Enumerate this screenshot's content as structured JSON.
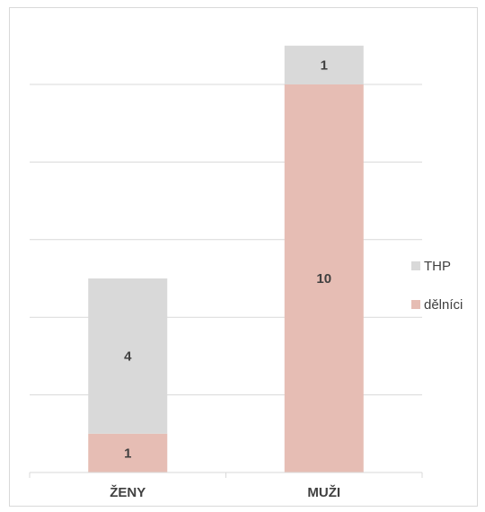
{
  "chart_data": {
    "type": "bar",
    "stacked": true,
    "categories": [
      "ŽENY",
      "MUŽI"
    ],
    "series": [
      {
        "name": "dělníci",
        "values": [
          1,
          10
        ],
        "color": "#e6bdb4"
      },
      {
        "name": "THP",
        "values": [
          4,
          1
        ],
        "color": "#d9d9d9"
      }
    ],
    "ylim": [
      0,
      12
    ],
    "gridlines": true,
    "legend": "right",
    "title": "",
    "xlabel": "",
    "ylabel": ""
  }
}
